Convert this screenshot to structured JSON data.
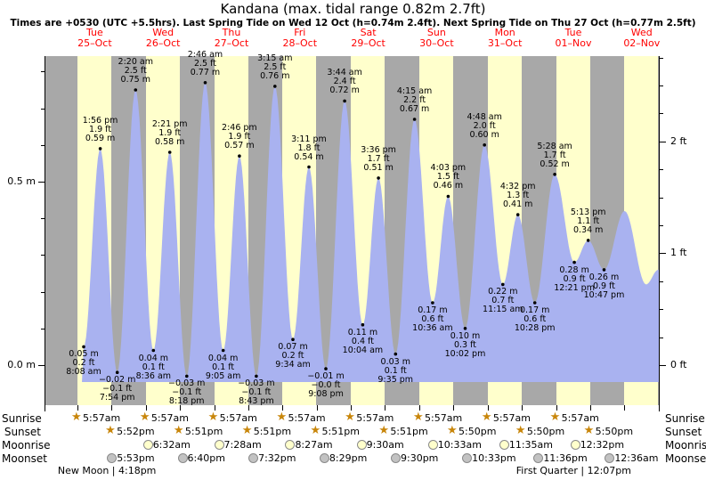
{
  "title": "Kandana (max. tidal range 0.82m 2.7ft)",
  "subtitle": "Times are +0530 (UTC +5.5hrs). Last Spring Tide on Wed 12 Oct (h=0.74m 2.4ft). Next Spring Tide on Thu 27 Oct (h=0.77m 2.5ft)",
  "colors": {
    "night": "#a8a8a8",
    "day": "#ffffcc",
    "tide": "#a9b2f0",
    "date_label": "#ff0000",
    "star": "#c8860a",
    "moon_light": "#ffffcc",
    "moon_dark": "#c2c2c2"
  },
  "row_labels": {
    "sunrise": "Sunrise",
    "sunset": "Sunset",
    "moonrise": "Moonrise",
    "moonset": "Moonset"
  },
  "chart_data": {
    "type": "area",
    "title": "Kandana (max. tidal range 0.82m 2.7ft)",
    "ylim_m": [
      -0.11,
      0.84
    ],
    "y_axis_left": [
      {
        "label": "0.5 m",
        "m": 0.5
      },
      {
        "label": "0.0 m",
        "m": 0.0
      }
    ],
    "y_axis_right": [
      {
        "label": "2 ft",
        "ft": 2
      },
      {
        "label": "1 ft",
        "ft": 1
      },
      {
        "label": "0 ft",
        "ft": 0
      }
    ],
    "days": [
      {
        "dow": "Tue",
        "date": "25–Oct"
      },
      {
        "dow": "Wed",
        "date": "26–Oct"
      },
      {
        "dow": "Thu",
        "date": "27–Oct"
      },
      {
        "dow": "Fri",
        "date": "28–Oct"
      },
      {
        "dow": "Sat",
        "date": "29–Oct"
      },
      {
        "dow": "Sun",
        "date": "30–Oct"
      },
      {
        "dow": "Mon",
        "date": "31–Oct"
      },
      {
        "dow": "Tue",
        "date": "01–Nov"
      },
      {
        "dow": "Wed",
        "date": "02–Nov"
      }
    ],
    "tide_events": [
      {
        "day": 0,
        "hour": 8.13,
        "m": 0.05,
        "kind": "L",
        "time": "8:08 am",
        "ft_label": "0.2 ft",
        "m_label": "0.05 m"
      },
      {
        "day": 0,
        "hour": 13.93,
        "m": 0.59,
        "kind": "H",
        "time": "1:56 pm",
        "ft_label": "1.9 ft",
        "m_label": "0.59 m"
      },
      {
        "day": 0,
        "hour": 19.9,
        "m": -0.02,
        "kind": "L",
        "time": "7:54 pm",
        "ft_label": "−0.1 ft",
        "m_label": "−0.02 m"
      },
      {
        "day": 1,
        "hour": 2.33,
        "m": 0.75,
        "kind": "H",
        "time": "2:20 am",
        "ft_label": "2.5 ft",
        "m_label": "0.75 m"
      },
      {
        "day": 1,
        "hour": 8.6,
        "m": 0.04,
        "kind": "L",
        "time": "8:36 am",
        "ft_label": "0.1 ft",
        "m_label": "0.04 m"
      },
      {
        "day": 1,
        "hour": 14.35,
        "m": 0.58,
        "kind": "H",
        "time": "2:21 pm",
        "ft_label": "1.9 ft",
        "m_label": "0.58 m"
      },
      {
        "day": 1,
        "hour": 20.3,
        "m": -0.03,
        "kind": "L",
        "time": "8:18 pm",
        "ft_label": "−0.1 ft",
        "m_label": "−0.03 m"
      },
      {
        "day": 2,
        "hour": 2.77,
        "m": 0.77,
        "kind": "H",
        "time": "2:46 am",
        "ft_label": "2.5 ft",
        "m_label": "0.77 m"
      },
      {
        "day": 2,
        "hour": 9.08,
        "m": 0.04,
        "kind": "L",
        "time": "9:05 am",
        "ft_label": "0.1 ft",
        "m_label": "0.04 m"
      },
      {
        "day": 2,
        "hour": 14.77,
        "m": 0.57,
        "kind": "H",
        "time": "2:46 pm",
        "ft_label": "1.9 ft",
        "m_label": "0.57 m"
      },
      {
        "day": 2,
        "hour": 20.72,
        "m": -0.03,
        "kind": "L",
        "time": "8:43 pm",
        "ft_label": "−0.1 ft",
        "m_label": "−0.03 m"
      },
      {
        "day": 3,
        "hour": 3.25,
        "m": 0.76,
        "kind": "H",
        "time": "3:15 am",
        "ft_label": "2.5 ft",
        "m_label": "0.76 m"
      },
      {
        "day": 3,
        "hour": 9.57,
        "m": 0.07,
        "kind": "L",
        "time": "9:34 am",
        "ft_label": "0.2 ft",
        "m_label": "0.07 m"
      },
      {
        "day": 3,
        "hour": 15.18,
        "m": 0.54,
        "kind": "H",
        "time": "3:11 pm",
        "ft_label": "1.8 ft",
        "m_label": "0.54 m"
      },
      {
        "day": 3,
        "hour": 21.13,
        "m": -0.01,
        "kind": "L",
        "time": "9:08 pm",
        "ft_label": "−0.0 ft",
        "m_label": "−0.01 m"
      },
      {
        "day": 4,
        "hour": 3.73,
        "m": 0.72,
        "kind": "H",
        "time": "3:44 am",
        "ft_label": "2.4 ft",
        "m_label": "0.72 m"
      },
      {
        "day": 4,
        "hour": 10.07,
        "m": 0.11,
        "kind": "L",
        "time": "10:04 am",
        "ft_label": "0.4 ft",
        "m_label": "0.11 m"
      },
      {
        "day": 4,
        "hour": 15.6,
        "m": 0.51,
        "kind": "H",
        "time": "3:36 pm",
        "ft_label": "1.7 ft",
        "m_label": "0.51 m"
      },
      {
        "day": 4,
        "hour": 21.58,
        "m": 0.03,
        "kind": "L",
        "time": "9:35 pm",
        "ft_label": "0.1 ft",
        "m_label": "0.03 m"
      },
      {
        "day": 5,
        "hour": 4.25,
        "m": 0.67,
        "kind": "H",
        "time": "4:15 am",
        "ft_label": "2.2 ft",
        "m_label": "0.67 m"
      },
      {
        "day": 5,
        "hour": 10.6,
        "m": 0.17,
        "kind": "L",
        "time": "10:36 am",
        "ft_label": "0.6 ft",
        "m_label": "0.17 m"
      },
      {
        "day": 5,
        "hour": 16.05,
        "m": 0.46,
        "kind": "H",
        "time": "4:03 pm",
        "ft_label": "1.5 ft",
        "m_label": "0.46 m"
      },
      {
        "day": 5,
        "hour": 22.03,
        "m": 0.1,
        "kind": "L",
        "time": "10:02 pm",
        "ft_label": "0.3 ft",
        "m_label": "0.10 m"
      },
      {
        "day": 6,
        "hour": 4.8,
        "m": 0.6,
        "kind": "H",
        "time": "4:48 am",
        "ft_label": "2.0 ft",
        "m_label": "0.60 m"
      },
      {
        "day": 6,
        "hour": 11.25,
        "m": 0.22,
        "kind": "L",
        "time": "11:15 am",
        "ft_label": "0.7 ft",
        "m_label": "0.22 m"
      },
      {
        "day": 6,
        "hour": 16.53,
        "m": 0.41,
        "kind": "H",
        "time": "4:32 pm",
        "ft_label": "1.3 ft",
        "m_label": "0.41 m"
      },
      {
        "day": 6,
        "hour": 22.47,
        "m": 0.17,
        "kind": "L",
        "time": "10:28 pm",
        "ft_label": "0.6 ft",
        "m_label": "0.17 m"
      },
      {
        "day": 7,
        "hour": 5.47,
        "m": 0.52,
        "kind": "H",
        "time": "5:28 am",
        "ft_label": "1.7 ft",
        "m_label": "0.52 m"
      },
      {
        "day": 7,
        "hour": 12.35,
        "m": 0.28,
        "kind": "L",
        "time": "12:21 pm",
        "ft_label": "0.9 ft",
        "m_label": "0.28 m"
      },
      {
        "day": 7,
        "hour": 17.22,
        "m": 0.34,
        "kind": "H",
        "time": "5:13 pm",
        "ft_label": "1.1 ft",
        "m_label": "0.34 m"
      },
      {
        "day": 7,
        "hour": 22.78,
        "m": 0.26,
        "kind": "L",
        "time": "10:47 pm",
        "ft_label": "0.9 ft",
        "m_label": "0.26 m"
      }
    ],
    "curve_tail": [
      {
        "day": 8,
        "hour": 6.0,
        "m": 0.42
      },
      {
        "day": 8,
        "hour": 13.5,
        "m": 0.22
      },
      {
        "day": 8,
        "hour": 17.85,
        "m": 0.26
      }
    ],
    "sunrise": [
      {
        "day": 0,
        "hour": 5.95,
        "time": "5:57am"
      },
      {
        "day": 1,
        "hour": 5.95,
        "time": "5:57am"
      },
      {
        "day": 2,
        "hour": 5.95,
        "time": "5:57am"
      },
      {
        "day": 3,
        "hour": 5.95,
        "time": "5:57am"
      },
      {
        "day": 4,
        "hour": 5.95,
        "time": "5:57am"
      },
      {
        "day": 5,
        "hour": 5.95,
        "time": "5:57am"
      },
      {
        "day": 6,
        "hour": 5.95,
        "time": "5:57am"
      },
      {
        "day": 7,
        "hour": 5.95,
        "time": "5:57am"
      }
    ],
    "sunset": [
      {
        "day": 0,
        "hour": 17.87,
        "time": "5:52pm"
      },
      {
        "day": 1,
        "hour": 17.85,
        "time": "5:51pm"
      },
      {
        "day": 2,
        "hour": 17.85,
        "time": "5:51pm"
      },
      {
        "day": 3,
        "hour": 17.85,
        "time": "5:51pm"
      },
      {
        "day": 4,
        "hour": 17.85,
        "time": "5:51pm"
      },
      {
        "day": 5,
        "hour": 17.83,
        "time": "5:50pm"
      },
      {
        "day": 6,
        "hour": 17.83,
        "time": "5:50pm"
      },
      {
        "day": 7,
        "hour": 17.83,
        "time": "5:50pm"
      }
    ],
    "moonrise": [
      {
        "day": 1,
        "hour": 6.53,
        "time": "6:32am"
      },
      {
        "day": 2,
        "hour": 7.47,
        "time": "7:28am"
      },
      {
        "day": 3,
        "hour": 8.45,
        "time": "8:27am"
      },
      {
        "day": 4,
        "hour": 9.5,
        "time": "9:30am"
      },
      {
        "day": 5,
        "hour": 10.55,
        "time": "10:33am"
      },
      {
        "day": 6,
        "hour": 11.58,
        "time": "11:35am"
      },
      {
        "day": 7,
        "hour": 12.53,
        "time": "12:32pm"
      }
    ],
    "moonset": [
      {
        "day": 0,
        "hour": 17.88,
        "time": "5:53pm"
      },
      {
        "day": 1,
        "hour": 18.67,
        "time": "6:40pm"
      },
      {
        "day": 2,
        "hour": 19.53,
        "time": "7:32pm"
      },
      {
        "day": 3,
        "hour": 20.48,
        "time": "8:29pm"
      },
      {
        "day": 4,
        "hour": 21.5,
        "time": "9:30pm"
      },
      {
        "day": 5,
        "hour": 22.55,
        "time": "10:33pm"
      },
      {
        "day": 6,
        "hour": 23.6,
        "time": "11:36pm"
      },
      {
        "day": 8,
        "hour": 0.6,
        "time": "12:36am"
      }
    ],
    "moon_phases": [
      {
        "name": "New Moon",
        "time": "4:18pm",
        "day": 0,
        "hour": 16.3
      },
      {
        "name": "First Quarter",
        "time": "12:07pm",
        "day": 7,
        "hour": 12.12
      }
    ]
  }
}
